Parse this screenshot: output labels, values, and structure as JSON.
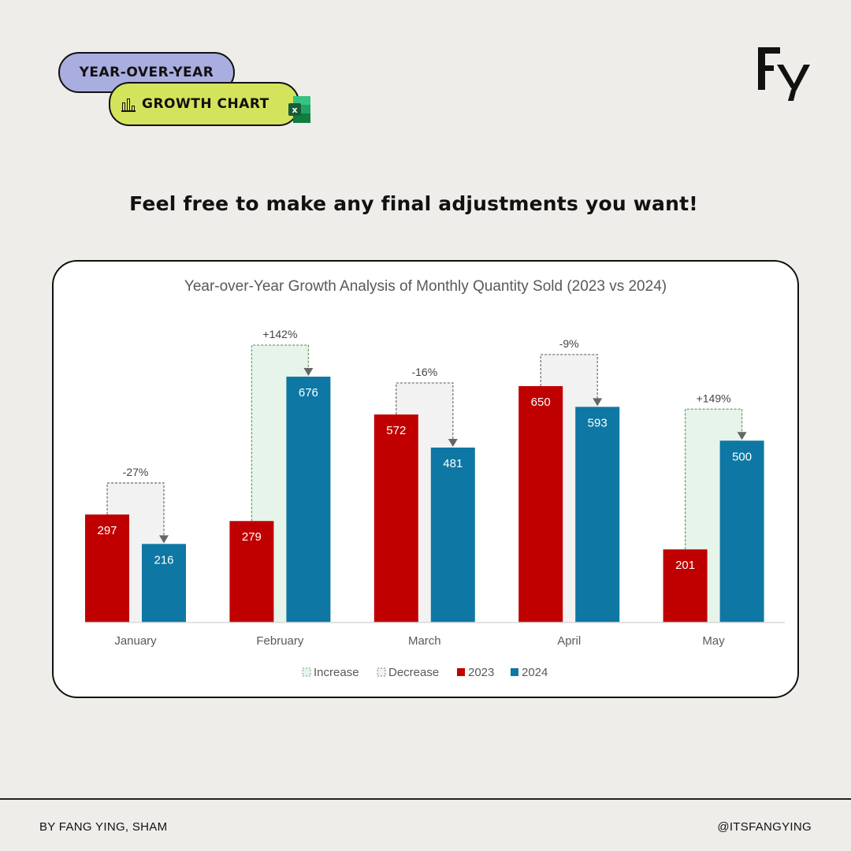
{
  "badges": {
    "line1": "YEAR-OVER-YEAR",
    "line2": "GROWTH CHART"
  },
  "logo_text": "FY",
  "headline": "Feel free to make any final adjustments you want!",
  "footer": {
    "left": "BY FANG YING, SHAM",
    "right": "@ITSFANGYING"
  },
  "colors": {
    "s2023": "#c00000",
    "s2024": "#0f77a3",
    "increase": "#e6f4ea",
    "decrease": "#f2f2f2",
    "background": "#eeede9"
  },
  "chart_data": {
    "type": "bar",
    "title": "Year-over-Year Growth Analysis of Monthly Quantity Sold (2023 vs 2024)",
    "categories": [
      "January",
      "February",
      "March",
      "April",
      "May"
    ],
    "series": [
      {
        "name": "2023",
        "values": [
          297,
          279,
          572,
          650,
          201
        ]
      },
      {
        "name": "2024",
        "values": [
          216,
          676,
          481,
          593,
          500
        ]
      }
    ],
    "change_labels": [
      "-27%",
      "+142%",
      "-16%",
      "-9%",
      "+149%"
    ],
    "legend": [
      "Increase",
      "Decrease",
      "2023",
      "2024"
    ],
    "legend_position": "bottom",
    "ylim": [
      0,
      800
    ],
    "grid": false
  }
}
